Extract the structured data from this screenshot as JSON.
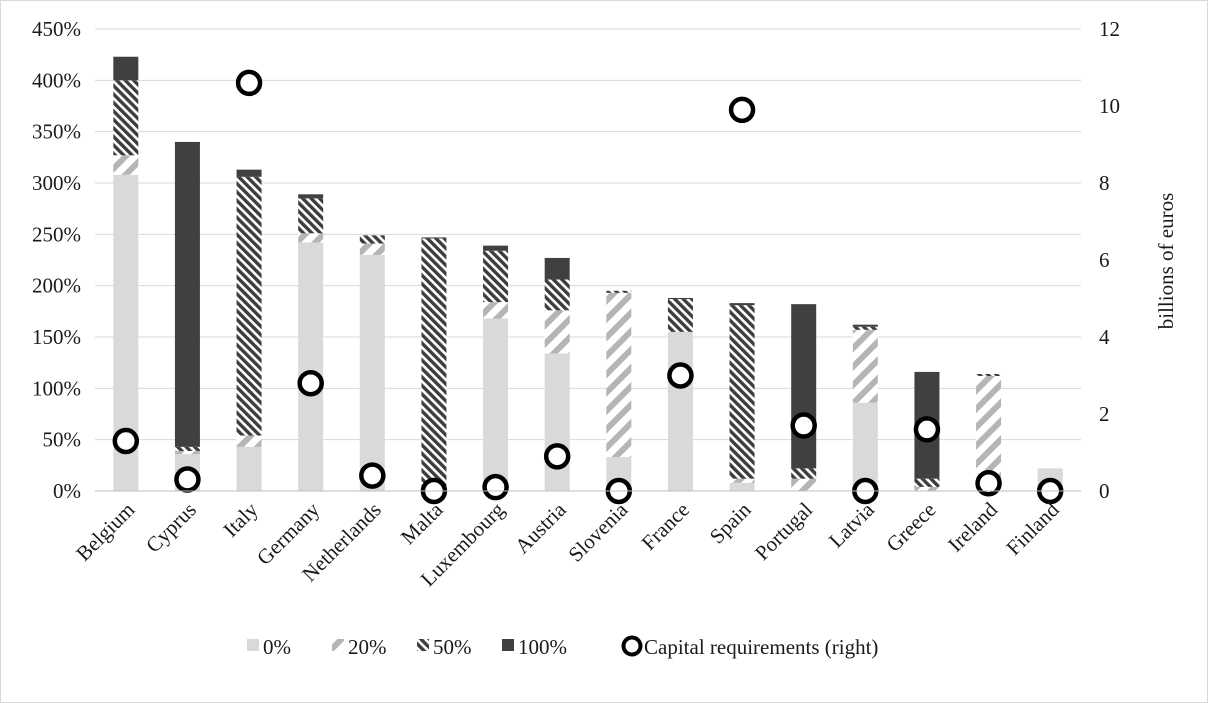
{
  "chart_data": {
    "type": "bar",
    "stacked": true,
    "title": "",
    "xlabel": "",
    "ylabel": "",
    "ylabel_right": "billions of euros",
    "ylim": [
      0,
      450
    ],
    "y_ticks": [
      "0%",
      "50%",
      "100%",
      "150%",
      "200%",
      "250%",
      "300%",
      "350%",
      "400%",
      "450%"
    ],
    "ylim_right": [
      0,
      12
    ],
    "y_ticks_right": [
      "0",
      "2",
      "4",
      "6",
      "8",
      "10",
      "12"
    ],
    "grid": "horizontal",
    "legend_position": "bottom",
    "categories": [
      "Belgium",
      "Cyprus",
      "Italy",
      "Germany",
      "Netherlands",
      "Malta",
      "Luxembourg",
      "Austria",
      "Slovenia",
      "France",
      "Spain",
      "Portugal",
      "Latvia",
      "Greece",
      "Ireland",
      "Finland"
    ],
    "series": [
      {
        "name": "0%",
        "pattern": "solid",
        "color": "#d9d9d9",
        "values": [
          308,
          36,
          43,
          242,
          230,
          0,
          168,
          134,
          33,
          155,
          8,
          0,
          86,
          0,
          0,
          22
        ]
      },
      {
        "name": "20%",
        "pattern": "wide-diagonal",
        "color": "#b7b7b7",
        "values": [
          19,
          3,
          11,
          9,
          11,
          0,
          16,
          42,
          160,
          0,
          4,
          12,
          71,
          4,
          112,
          0
        ]
      },
      {
        "name": "50%",
        "pattern": "dense-diagonal",
        "color": "#4d4d4d",
        "values": [
          73,
          4,
          252,
          34,
          8,
          246,
          50,
          30,
          2,
          32,
          169,
          10,
          3,
          8,
          2,
          0
        ]
      },
      {
        "name": "100%",
        "pattern": "solid",
        "color": "#404040",
        "values": [
          23,
          297,
          7,
          4,
          0,
          1,
          5,
          21,
          0,
          1,
          2,
          160,
          2,
          104,
          0,
          0
        ]
      }
    ],
    "secondary_series": {
      "name": "Capital requirements (right)",
      "type": "scatter",
      "marker": "hollow-circle",
      "values": [
        1.3,
        0.3,
        10.6,
        2.8,
        0.4,
        0.0,
        0.1,
        0.9,
        0.0,
        3.0,
        9.9,
        1.7,
        0.0,
        1.6,
        0.2,
        0.0
      ]
    }
  }
}
